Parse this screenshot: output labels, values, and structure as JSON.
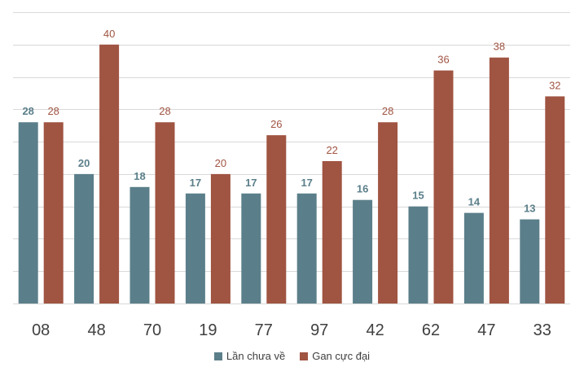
{
  "chart_data": {
    "type": "bar",
    "title": "",
    "xlabel": "",
    "ylabel": "",
    "ylim": [
      0,
      45
    ],
    "grid": true,
    "legend_position": "bottom",
    "categories": [
      "08",
      "48",
      "70",
      "19",
      "77",
      "97",
      "42",
      "62",
      "47",
      "33"
    ],
    "series": [
      {
        "name": "Lần chưa về",
        "color": "#5b7f8a",
        "values": [
          28,
          20,
          18,
          17,
          17,
          17,
          16,
          15,
          14,
          13
        ]
      },
      {
        "name": "Gan cực đại",
        "color": "#a05442",
        "values": [
          28,
          40,
          28,
          20,
          26,
          22,
          28,
          36,
          38,
          32
        ]
      }
    ]
  }
}
